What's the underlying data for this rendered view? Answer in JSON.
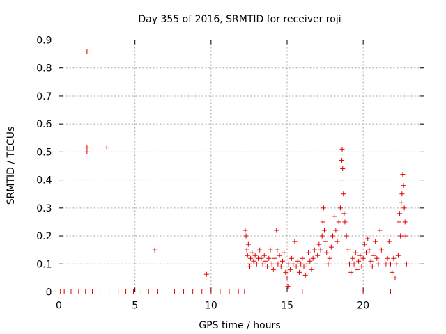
{
  "chart_data": {
    "type": "scatter",
    "title": "Day 355 of 2016, SRMTID for receiver roji",
    "xlabel": "GPS time / hours",
    "ylabel": "SRMTID / TECUs",
    "xlim": [
      0,
      24
    ],
    "ylim": [
      0,
      0.9
    ],
    "xticks": [
      0,
      5,
      10,
      15,
      20
    ],
    "xtick_labels": [
      "0",
      "5",
      "10",
      "15",
      "20"
    ],
    "yticks": [
      0,
      0.1,
      0.2,
      0.3,
      0.4,
      0.5,
      0.6,
      0.7,
      0.8,
      0.9
    ],
    "ytick_labels": [
      "0",
      "0.1",
      "0.2",
      "0.3",
      "0.4",
      "0.5",
      "0.6",
      "0.7",
      "0.8",
      "0.9"
    ],
    "grid": true,
    "marker": "+",
    "color": "#e00000",
    "series": [
      {
        "name": "SRMTID",
        "points": [
          [
            1.85,
            0.86
          ],
          [
            1.85,
            0.515
          ],
          [
            1.85,
            0.5
          ],
          [
            3.15,
            0.515
          ],
          [
            6.3,
            0.15
          ],
          [
            9.7,
            0.063
          ],
          [
            12.25,
            0.22
          ],
          [
            12.3,
            0.2
          ],
          [
            12.35,
            0.15
          ],
          [
            12.4,
            0.13
          ],
          [
            12.45,
            0.17
          ],
          [
            12.5,
            0.1
          ],
          [
            12.55,
            0.09
          ],
          [
            12.6,
            0.12
          ],
          [
            12.7,
            0.14
          ],
          [
            12.8,
            0.11
          ],
          [
            12.9,
            0.13
          ],
          [
            13.0,
            0.1
          ],
          [
            13.1,
            0.12
          ],
          [
            13.2,
            0.15
          ],
          [
            13.3,
            0.12
          ],
          [
            13.4,
            0.1
          ],
          [
            13.5,
            0.13
          ],
          [
            13.6,
            0.11
          ],
          [
            13.7,
            0.09
          ],
          [
            13.8,
            0.12
          ],
          [
            13.9,
            0.15
          ],
          [
            14.0,
            0.1
          ],
          [
            14.1,
            0.08
          ],
          [
            14.2,
            0.12
          ],
          [
            14.3,
            0.22
          ],
          [
            14.35,
            0.15
          ],
          [
            14.4,
            0.1
          ],
          [
            14.5,
            0.13
          ],
          [
            14.6,
            0.09
          ],
          [
            14.7,
            0.11
          ],
          [
            14.8,
            0.14
          ],
          [
            14.9,
            0.07
          ],
          [
            15.0,
            0.05
          ],
          [
            15.05,
            0.02
          ],
          [
            15.1,
            0.1
          ],
          [
            15.2,
            0.08
          ],
          [
            15.3,
            0.12
          ],
          [
            15.4,
            0.1
          ],
          [
            15.5,
            0.18
          ],
          [
            15.6,
            0.09
          ],
          [
            15.7,
            0.11
          ],
          [
            15.8,
            0.07
          ],
          [
            15.9,
            0.1
          ],
          [
            16.0,
            0.12
          ],
          [
            16.1,
            0.09
          ],
          [
            16.2,
            0.06
          ],
          [
            16.3,
            0.1
          ],
          [
            16.4,
            0.14
          ],
          [
            16.5,
            0.11
          ],
          [
            16.6,
            0.08
          ],
          [
            16.7,
            0.12
          ],
          [
            16.8,
            0.15
          ],
          [
            16.9,
            0.1
          ],
          [
            17.0,
            0.13
          ],
          [
            17.1,
            0.17
          ],
          [
            17.2,
            0.15
          ],
          [
            17.3,
            0.2
          ],
          [
            17.35,
            0.25
          ],
          [
            17.4,
            0.3
          ],
          [
            17.45,
            0.22
          ],
          [
            17.5,
            0.18
          ],
          [
            17.6,
            0.14
          ],
          [
            17.7,
            0.1
          ],
          [
            17.8,
            0.12
          ],
          [
            17.9,
            0.16
          ],
          [
            18.0,
            0.2
          ],
          [
            18.1,
            0.27
          ],
          [
            18.2,
            0.22
          ],
          [
            18.3,
            0.18
          ],
          [
            18.4,
            0.25
          ],
          [
            18.5,
            0.3
          ],
          [
            18.55,
            0.4
          ],
          [
            18.6,
            0.47
          ],
          [
            18.62,
            0.51
          ],
          [
            18.65,
            0.44
          ],
          [
            18.7,
            0.35
          ],
          [
            18.75,
            0.28
          ],
          [
            18.8,
            0.25
          ],
          [
            18.9,
            0.2
          ],
          [
            19.0,
            0.15
          ],
          [
            19.1,
            0.1
          ],
          [
            19.2,
            0.07
          ],
          [
            19.3,
            0.12
          ],
          [
            19.4,
            0.1
          ],
          [
            19.5,
            0.14
          ],
          [
            19.6,
            0.08
          ],
          [
            19.7,
            0.11
          ],
          [
            19.8,
            0.13
          ],
          [
            19.9,
            0.09
          ],
          [
            20.0,
            0.12
          ],
          [
            20.1,
            0.17
          ],
          [
            20.2,
            0.14
          ],
          [
            20.3,
            0.19
          ],
          [
            20.4,
            0.15
          ],
          [
            20.5,
            0.11
          ],
          [
            20.6,
            0.09
          ],
          [
            20.7,
            0.13
          ],
          [
            20.8,
            0.18
          ],
          [
            20.9,
            0.12
          ],
          [
            21.0,
            0.1
          ],
          [
            21.1,
            0.22
          ],
          [
            21.2,
            0.15
          ],
          [
            21.5,
            0.1
          ],
          [
            21.6,
            0.12
          ],
          [
            21.7,
            0.18
          ],
          [
            21.8,
            0.1
          ],
          [
            21.9,
            0.07
          ],
          [
            22.0,
            0.12
          ],
          [
            22.1,
            0.05
          ],
          [
            22.2,
            0.1
          ],
          [
            22.3,
            0.13
          ],
          [
            22.35,
            0.25
          ],
          [
            22.4,
            0.28
          ],
          [
            22.45,
            0.2
          ],
          [
            22.5,
            0.32
          ],
          [
            22.55,
            0.35
          ],
          [
            22.6,
            0.42
          ],
          [
            22.65,
            0.38
          ],
          [
            22.7,
            0.3
          ],
          [
            22.75,
            0.25
          ],
          [
            22.8,
            0.2
          ],
          [
            22.85,
            0.1
          ],
          [
            0.1,
            0
          ],
          [
            0.35,
            0
          ],
          [
            0.8,
            0
          ],
          [
            1.3,
            0
          ],
          [
            1.75,
            0
          ],
          [
            2.2,
            0
          ],
          [
            2.7,
            0
          ],
          [
            3.3,
            0
          ],
          [
            3.9,
            0
          ],
          [
            4.4,
            0
          ],
          [
            4.9,
            0
          ],
          [
            5.4,
            0
          ],
          [
            5.9,
            0
          ],
          [
            6.5,
            0
          ],
          [
            7.1,
            0
          ],
          [
            7.6,
            0
          ],
          [
            8.2,
            0
          ],
          [
            8.8,
            0
          ],
          [
            9.4,
            0
          ],
          [
            10.0,
            0
          ],
          [
            10.6,
            0
          ],
          [
            11.2,
            0
          ],
          [
            11.8,
            0
          ],
          [
            12.2,
            0
          ],
          [
            16.0,
            0
          ],
          [
            20.0,
            0
          ],
          [
            21.8,
            0
          ]
        ]
      }
    ]
  }
}
